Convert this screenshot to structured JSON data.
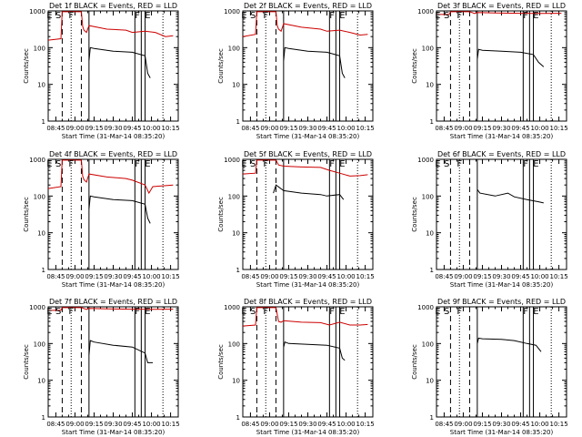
{
  "page": {
    "width_note": "3x3 grid of detector count-rate panels"
  },
  "colors": {
    "events": "#000000",
    "lld": "#cc0000",
    "axis": "#000000"
  },
  "common": {
    "ylabel": "Counts/sec",
    "xlabel": "Start Time (31-Mar-14 08:35:20)",
    "xticks": [
      "08:45",
      "09:00",
      "09:15",
      "09:30",
      "09:45",
      "10:00",
      "10:15"
    ],
    "xtick_minutes": [
      0,
      15,
      30,
      45,
      60,
      75,
      90
    ],
    "yticks": [
      "1",
      "10",
      "100",
      "1000"
    ],
    "yscale": "log",
    "ylim": [
      1,
      1000
    ],
    "xlim_minutes": [
      -6,
      96
    ]
  },
  "chart_data": [
    {
      "type": "line",
      "title": "Det 1f BLACK = Events, RED = LLD",
      "letters": [
        {
          "t": "E",
          "m": -5
        },
        {
          "t": "S",
          "m": 2
        },
        {
          "t": "F",
          "m": 12
        },
        {
          "t": "F",
          "m": 64
        },
        {
          "t": "E",
          "m": 72
        }
      ],
      "dashed": [
        5,
        20
      ],
      "solid": [
        26,
        62,
        67,
        70
      ],
      "dotted": [
        12,
        84
      ],
      "series": [
        {
          "name": "LLD",
          "points": [
            [
              -6,
              160
            ],
            [
              4,
              175
            ],
            [
              5,
              950
            ],
            [
              18,
              950
            ],
            [
              20,
              950
            ],
            [
              21,
              380
            ],
            [
              22,
              300
            ],
            [
              24,
              260
            ],
            [
              26,
              400
            ],
            [
              40,
              320
            ],
            [
              55,
              300
            ],
            [
              60,
              260
            ],
            [
              70,
              280
            ],
            [
              78,
              260
            ],
            [
              86,
              200
            ],
            [
              92,
              210
            ]
          ]
        },
        {
          "name": "Events",
          "points": [
            [
              26,
              45
            ],
            [
              27,
              100
            ],
            [
              30,
              95
            ],
            [
              45,
              80
            ],
            [
              60,
              75
            ],
            [
              70,
              60
            ],
            [
              72,
              20
            ],
            [
              74,
              15
            ]
          ]
        }
      ]
    },
    {
      "type": "line",
      "title": "Det 2f BLACK = Events, RED = LLD",
      "letters": [
        {
          "t": "E",
          "m": -5
        },
        {
          "t": "S",
          "m": 2
        },
        {
          "t": "F",
          "m": 12
        },
        {
          "t": "F",
          "m": 64
        },
        {
          "t": "E",
          "m": 72
        }
      ],
      "dashed": [
        5,
        20
      ],
      "solid": [
        26,
        62,
        67,
        70
      ],
      "dotted": [
        12,
        84
      ],
      "series": [
        {
          "name": "LLD",
          "points": [
            [
              -6,
              200
            ],
            [
              4,
              230
            ],
            [
              5,
              950
            ],
            [
              18,
              950
            ],
            [
              20,
              950
            ],
            [
              21,
              400
            ],
            [
              22,
              320
            ],
            [
              24,
              280
            ],
            [
              26,
              450
            ],
            [
              40,
              360
            ],
            [
              55,
              320
            ],
            [
              60,
              280
            ],
            [
              70,
              300
            ],
            [
              78,
              260
            ],
            [
              86,
              220
            ],
            [
              92,
              230
            ]
          ]
        },
        {
          "name": "Events",
          "points": [
            [
              26,
              45
            ],
            [
              27,
              100
            ],
            [
              30,
              95
            ],
            [
              45,
              80
            ],
            [
              60,
              75
            ],
            [
              70,
              60
            ],
            [
              72,
              20
            ],
            [
              74,
              15
            ]
          ]
        }
      ]
    },
    {
      "type": "line",
      "title": "Det 3f BLACK = Events, RED = LLD",
      "letters": [
        {
          "t": "E",
          "m": -5
        },
        {
          "t": "S",
          "m": 2
        },
        {
          "t": "F",
          "m": 12
        },
        {
          "t": "F",
          "m": 64
        },
        {
          "t": "E",
          "m": 72
        }
      ],
      "dashed": [
        5,
        20
      ],
      "solid": [
        26,
        62,
        67,
        70
      ],
      "dotted": [
        12,
        84
      ],
      "series": [
        {
          "name": "LLD",
          "points": [
            [
              -6,
              800
            ],
            [
              4,
              800
            ],
            [
              5,
              950
            ],
            [
              18,
              950
            ],
            [
              20,
              950
            ],
            [
              24,
              850
            ],
            [
              26,
              900
            ],
            [
              40,
              880
            ],
            [
              60,
              860
            ],
            [
              75,
              850
            ],
            [
              92,
              860
            ]
          ]
        },
        {
          "name": "Events",
          "points": [
            [
              26,
              50
            ],
            [
              27,
              90
            ],
            [
              30,
              85
            ],
            [
              45,
              80
            ],
            [
              60,
              75
            ],
            [
              70,
              65
            ],
            [
              74,
              40
            ],
            [
              78,
              30
            ]
          ]
        }
      ]
    },
    {
      "type": "line",
      "title": "Det 4f BLACK = Events, RED = LLD",
      "letters": [
        {
          "t": "E",
          "m": -5
        },
        {
          "t": "S",
          "m": 2
        },
        {
          "t": "F",
          "m": 12
        },
        {
          "t": "F",
          "m": 64
        },
        {
          "t": "E",
          "m": 72
        }
      ],
      "dashed": [
        5,
        20
      ],
      "solid": [
        26,
        62,
        67,
        70
      ],
      "dotted": [
        12,
        84
      ],
      "series": [
        {
          "name": "LLD",
          "points": [
            [
              -6,
              160
            ],
            [
              4,
              180
            ],
            [
              5,
              950
            ],
            [
              18,
              950
            ],
            [
              20,
              950
            ],
            [
              21,
              350
            ],
            [
              22,
              280
            ],
            [
              24,
              240
            ],
            [
              26,
              400
            ],
            [
              40,
              330
            ],
            [
              55,
              300
            ],
            [
              60,
              270
            ],
            [
              70,
              200
            ],
            [
              73,
              120
            ],
            [
              76,
              180
            ],
            [
              92,
              200
            ]
          ]
        },
        {
          "name": "Events",
          "points": [
            [
              26,
              45
            ],
            [
              27,
              100
            ],
            [
              30,
              95
            ],
            [
              45,
              80
            ],
            [
              60,
              75
            ],
            [
              70,
              60
            ],
            [
              72,
              25
            ],
            [
              74,
              18
            ]
          ]
        }
      ]
    },
    {
      "type": "line",
      "title": "Det 5f BLACK = Events, RED = LLD",
      "letters": [
        {
          "t": "E",
          "m": -5
        },
        {
          "t": "S",
          "m": 2
        },
        {
          "t": "F",
          "m": 12
        },
        {
          "t": "F",
          "m": 64
        },
        {
          "t": "E",
          "m": 72
        }
      ],
      "dashed": [
        5,
        20
      ],
      "solid": [
        26,
        62,
        67,
        70
      ],
      "dotted": [
        12,
        84
      ],
      "series": [
        {
          "name": "LLD",
          "points": [
            [
              -6,
              400
            ],
            [
              4,
              420
            ],
            [
              5,
              950
            ],
            [
              18,
              950
            ],
            [
              20,
              950
            ],
            [
              22,
              700
            ],
            [
              26,
              650
            ],
            [
              40,
              620
            ],
            [
              55,
              600
            ],
            [
              62,
              500
            ],
            [
              70,
              420
            ],
            [
              78,
              350
            ],
            [
              86,
              360
            ],
            [
              92,
              380
            ]
          ]
        },
        {
          "name": "Events",
          "points": [
            [
              18,
              120
            ],
            [
              20,
              200
            ],
            [
              26,
              140
            ],
            [
              40,
              120
            ],
            [
              55,
              110
            ],
            [
              60,
              100
            ],
            [
              70,
              110
            ],
            [
              73,
              80
            ]
          ]
        }
      ]
    },
    {
      "type": "line",
      "title": "Det 6f BLACK = Events, RED = LLD",
      "letters": [
        {
          "t": "E",
          "m": -5
        },
        {
          "t": "S",
          "m": 2
        },
        {
          "t": "F",
          "m": 12
        },
        {
          "t": "F",
          "m": 64
        },
        {
          "t": "E",
          "m": 72
        }
      ],
      "dashed": [
        5,
        20
      ],
      "solid": [
        26,
        62,
        67,
        70
      ],
      "dotted": [
        12,
        84
      ],
      "series": [
        {
          "name": "Events",
          "points": [
            [
              26,
              150
            ],
            [
              28,
              120
            ],
            [
              40,
              100
            ],
            [
              50,
              120
            ],
            [
              55,
              95
            ],
            [
              65,
              80
            ],
            [
              74,
              70
            ],
            [
              78,
              65
            ]
          ]
        }
      ]
    },
    {
      "type": "line",
      "title": "Det 7f BLACK = Events, RED = LLD",
      "letters": [
        {
          "t": "E",
          "m": -5
        },
        {
          "t": "S",
          "m": 2
        },
        {
          "t": "F",
          "m": 12
        },
        {
          "t": "F",
          "m": 64
        },
        {
          "t": "E",
          "m": 72
        }
      ],
      "dashed": [
        5,
        20
      ],
      "solid": [
        26,
        62,
        67,
        70
      ],
      "dotted": [
        12,
        84
      ],
      "series": [
        {
          "name": "LLD",
          "points": [
            [
              -6,
              800
            ],
            [
              4,
              800
            ],
            [
              5,
              950
            ],
            [
              18,
              950
            ],
            [
              20,
              950
            ],
            [
              24,
              850
            ],
            [
              26,
              900
            ],
            [
              40,
              880
            ],
            [
              60,
              860
            ],
            [
              75,
              850
            ],
            [
              92,
              860
            ]
          ]
        },
        {
          "name": "Events",
          "points": [
            [
              26,
              50
            ],
            [
              27,
              120
            ],
            [
              30,
              110
            ],
            [
              45,
              90
            ],
            [
              60,
              80
            ],
            [
              70,
              55
            ],
            [
              72,
              30
            ],
            [
              76,
              30
            ]
          ]
        }
      ]
    },
    {
      "type": "line",
      "title": "Det 8f BLACK = Events, RED = LLD",
      "letters": [
        {
          "t": "E",
          "m": -5
        },
        {
          "t": "S",
          "m": 2
        },
        {
          "t": "F",
          "m": 12
        },
        {
          "t": "F",
          "m": 64
        },
        {
          "t": "E",
          "m": 72
        }
      ],
      "dashed": [
        5,
        20
      ],
      "solid": [
        26,
        62,
        67,
        70
      ],
      "dotted": [
        12,
        84
      ],
      "series": [
        {
          "name": "LLD",
          "points": [
            [
              -6,
              300
            ],
            [
              4,
              320
            ],
            [
              5,
              950
            ],
            [
              18,
              950
            ],
            [
              20,
              950
            ],
            [
              22,
              400
            ],
            [
              24,
              380
            ],
            [
              26,
              420
            ],
            [
              40,
              380
            ],
            [
              55,
              370
            ],
            [
              62,
              320
            ],
            [
              70,
              380
            ],
            [
              78,
              320
            ],
            [
              86,
              320
            ],
            [
              92,
              330
            ]
          ]
        },
        {
          "name": "Events",
          "points": [
            [
              26,
              80
            ],
            [
              27,
              110
            ],
            [
              30,
              100
            ],
            [
              45,
              95
            ],
            [
              60,
              90
            ],
            [
              70,
              75
            ],
            [
              72,
              40
            ],
            [
              74,
              35
            ]
          ]
        }
      ]
    },
    {
      "type": "line",
      "title": "Det 9f BLACK = Events, RED = LLD",
      "letters": [
        {
          "t": "E",
          "m": -5
        },
        {
          "t": "S",
          "m": 2
        },
        {
          "t": "F",
          "m": 12
        },
        {
          "t": "F",
          "m": 64
        },
        {
          "t": "E",
          "m": 72
        }
      ],
      "dashed": [
        5,
        20
      ],
      "solid": [
        26,
        62,
        67,
        70
      ],
      "dotted": [
        12,
        84
      ],
      "series": [
        {
          "name": "Events",
          "points": [
            [
              26,
              100
            ],
            [
              27,
              140
            ],
            [
              30,
              135
            ],
            [
              45,
              130
            ],
            [
              55,
              120
            ],
            [
              65,
              100
            ],
            [
              72,
              90
            ],
            [
              76,
              60
            ]
          ]
        }
      ]
    }
  ]
}
